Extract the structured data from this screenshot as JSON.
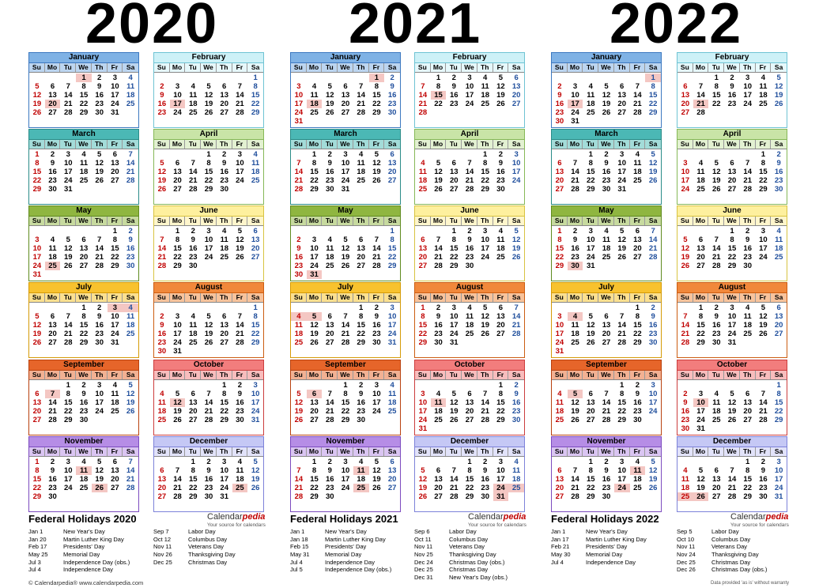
{
  "years": [
    "2020",
    "2021",
    "2022"
  ],
  "dow_labels": [
    "Su",
    "Mo",
    "Tu",
    "We",
    "Th",
    "Fr",
    "Sa"
  ],
  "month_names": [
    "January",
    "February",
    "March",
    "April",
    "May",
    "June",
    "July",
    "August",
    "September",
    "October",
    "November",
    "December"
  ],
  "month_colors": {
    "header": [
      "#7fb2e5",
      "#cdf1f7",
      "#4bb8b5",
      "#c9e4a7",
      "#8fb640",
      "#fef09e",
      "#f8c22e",
      "#f1883b",
      "#e6652a",
      "#f27d7d",
      "#b68de6",
      "#c5c8f5"
    ],
    "dow": [
      "#bcd5f0",
      "#e6f8fb",
      "#a3dcd9",
      "#e3f1d2",
      "#c7da9f",
      "#fff6cc",
      "#fbe090",
      "#f8c39c",
      "#f2b193",
      "#f8bdbd",
      "#dac5f2",
      "#e2e3fa"
    ],
    "border": [
      "#3c78c0",
      "#6fc3d3",
      "#2a8c88",
      "#86b857",
      "#5f8b1f",
      "#d8c341",
      "#d59b07",
      "#cc5d11",
      "#b8410f",
      "#cc3d3d",
      "#7c4bbf",
      "#7d82d9"
    ]
  },
  "holidays": {
    "2020": {
      "0": [
        1,
        20
      ],
      "1": [
        17
      ],
      "4": [
        25
      ],
      "6": [
        3,
        4
      ],
      "8": [
        7
      ],
      "9": [
        12
      ],
      "10": [
        11,
        26
      ],
      "11": [
        25
      ]
    },
    "2021": {
      "0": [
        1,
        18
      ],
      "1": [
        15
      ],
      "4": [
        31
      ],
      "6": [
        4,
        5
      ],
      "8": [
        6
      ],
      "9": [
        11
      ],
      "10": [
        11,
        25
      ],
      "11": [
        24,
        25,
        31
      ]
    },
    "2022": {
      "0": [
        1,
        17
      ],
      "1": [
        21
      ],
      "4": [
        30
      ],
      "6": [
        4
      ],
      "8": [
        5
      ],
      "9": [
        10
      ],
      "10": [
        11,
        24
      ],
      "11": [
        25,
        26
      ]
    }
  },
  "federal": [
    {
      "title": "Federal Holidays 2020",
      "col1": [
        [
          "Jan 1",
          "New Year's Day"
        ],
        [
          "Jan 20",
          "Martin Luther King Day"
        ],
        [
          "Feb 17",
          "Presidents' Day"
        ],
        [
          "May 25",
          "Memorial Day"
        ],
        [
          "Jul 3",
          "Independence Day (obs.)"
        ],
        [
          "Jul 4",
          "Independence Day"
        ]
      ],
      "col2": [
        [
          "Sep 7",
          "Labor Day"
        ],
        [
          "Oct 12",
          "Columbus Day"
        ],
        [
          "Nov 11",
          "Veterans Day"
        ],
        [
          "Nov 26",
          "Thanksgiving Day"
        ],
        [
          "Dec 25",
          "Christmas Day"
        ]
      ]
    },
    {
      "title": "Federal Holidays 2021",
      "col1": [
        [
          "Jan 1",
          "New Year's Day"
        ],
        [
          "Jan 18",
          "Martin Luther King Day"
        ],
        [
          "Feb 15",
          "Presidents' Day"
        ],
        [
          "May 31",
          "Memorial Day"
        ],
        [
          "Jul 4",
          "Independence Day"
        ],
        [
          "Jul 5",
          "Independence Day (obs.)"
        ]
      ],
      "col2": [
        [
          "Sep 6",
          "Labor Day"
        ],
        [
          "Oct 11",
          "Columbus Day"
        ],
        [
          "Nov 11",
          "Veterans Day"
        ],
        [
          "Nov 25",
          "Thanksgiving Day"
        ],
        [
          "Dec 24",
          "Christmas Day (obs.)"
        ],
        [
          "Dec 25",
          "Christmas Day"
        ],
        [
          "Dec 31",
          "New Year's Day (obs.)"
        ]
      ]
    },
    {
      "title": "Federal Holidays 2022",
      "col1": [
        [
          "Jan 1",
          "New Year's Day"
        ],
        [
          "Jan 17",
          "Martin Luther King Day"
        ],
        [
          "Feb 21",
          "Presidents' Day"
        ],
        [
          "May 30",
          "Memorial Day"
        ],
        [
          "Jul 4",
          "Independence Day"
        ]
      ],
      "col2": [
        [
          "Sep 5",
          "Labor Day"
        ],
        [
          "Oct 10",
          "Columbus Day"
        ],
        [
          "Nov 11",
          "Veterans Day"
        ],
        [
          "Nov 24",
          "Thanksgiving Day"
        ],
        [
          "Dec 25",
          "Christmas Day"
        ],
        [
          "Dec 26",
          "Christmas Day (obs.)"
        ]
      ]
    }
  ],
  "brand": {
    "name_plain": "Calendar",
    "name_accent": "pedia",
    "tagline": "Your source for calendars"
  },
  "footer": {
    "left": "© Calendarpedia®   www.calendarpedia.com",
    "right": "Data provided 'as is' without warranty"
  }
}
